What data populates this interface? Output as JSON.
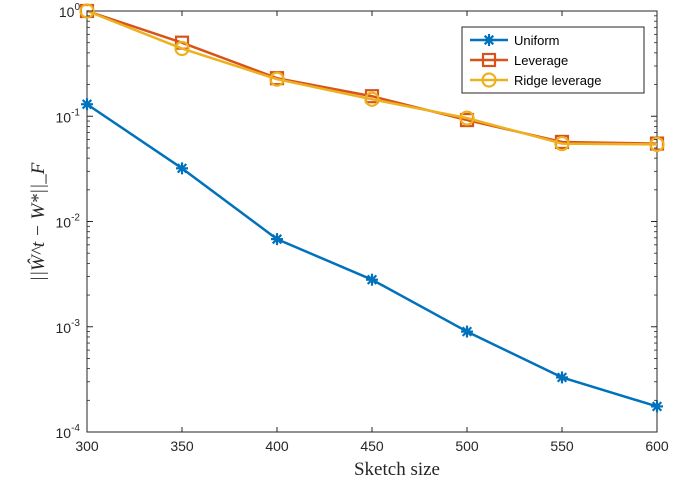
{
  "chart_data": {
    "type": "line",
    "xlabel": "Sketch size",
    "ylabel": "||Ŵ^t − W*||_F",
    "yscale": "log",
    "xlim": [
      300,
      600
    ],
    "ylim": [
      0.0001,
      1
    ],
    "x_ticks": [
      300,
      350,
      400,
      450,
      500,
      550,
      600
    ],
    "x_tick_labels": [
      "300",
      "350",
      "400",
      "450",
      "500",
      "550",
      "600"
    ],
    "y_ticks": [
      0.0001,
      0.001,
      0.01,
      0.1,
      1
    ],
    "y_tick_base": "10",
    "y_tick_exponents": [
      "-4",
      "-3",
      "-2",
      "-1",
      "0"
    ],
    "grid": false,
    "legend_position": "top-right",
    "x": [
      300,
      350,
      400,
      450,
      500,
      550,
      600
    ],
    "series": [
      {
        "name": "Uniform",
        "color": "#0072BD",
        "marker": "asterisk",
        "values": [
          0.13,
          0.032,
          0.0068,
          0.0028,
          0.0009,
          0.00033,
          0.000175
        ]
      },
      {
        "name": "Leverage",
        "color": "#D95319",
        "marker": "square",
        "values": [
          1.0,
          0.5,
          0.23,
          0.155,
          0.092,
          0.057,
          0.055
        ]
      },
      {
        "name": "Ridge leverage",
        "color": "#EDB120",
        "marker": "circle",
        "values": [
          1.0,
          0.44,
          0.225,
          0.145,
          0.096,
          0.055,
          0.054
        ]
      }
    ]
  }
}
